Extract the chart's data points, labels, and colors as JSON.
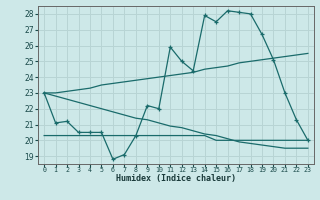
{
  "xlabel": "Humidex (Indice chaleur)",
  "background_color": "#cde8e8",
  "grid_color": "#b8d4d4",
  "line_color": "#1a6b6b",
  "xlim": [
    -0.5,
    23.5
  ],
  "ylim": [
    18.5,
    28.5
  ],
  "yticks": [
    19,
    20,
    21,
    22,
    23,
    24,
    25,
    26,
    27,
    28
  ],
  "xtick_labels": [
    "0",
    "1",
    "2",
    "3",
    "4",
    "5",
    "6",
    "7",
    "8",
    "9",
    "10",
    "11",
    "12",
    "13",
    "14",
    "15",
    "16",
    "17",
    "18",
    "19",
    "20",
    "21",
    "22",
    "23"
  ],
  "xtick_pos": [
    0,
    1,
    2,
    3,
    4,
    5,
    6,
    7,
    8,
    9,
    10,
    11,
    12,
    13,
    14,
    15,
    16,
    17,
    18,
    19,
    20,
    21,
    22,
    23
  ],
  "line1_x": [
    0,
    1,
    2,
    3,
    4,
    5,
    6,
    7,
    8,
    9,
    10,
    11,
    12,
    13,
    14,
    15,
    16,
    17,
    18,
    19,
    20,
    21,
    22,
    23
  ],
  "line1_y": [
    23.0,
    23.0,
    23.1,
    23.2,
    23.3,
    23.5,
    23.6,
    23.7,
    23.8,
    23.9,
    24.0,
    24.1,
    24.2,
    24.3,
    24.5,
    24.6,
    24.7,
    24.9,
    25.0,
    25.1,
    25.2,
    25.3,
    25.4,
    25.5
  ],
  "line2_x": [
    0,
    1,
    2,
    3,
    4,
    5,
    6,
    7,
    8,
    9,
    10,
    11,
    12,
    13,
    14,
    15,
    16,
    17,
    18,
    19,
    20,
    21,
    22,
    23
  ],
  "line2_y": [
    23.0,
    22.8,
    22.6,
    22.4,
    22.2,
    22.0,
    21.8,
    21.6,
    21.4,
    21.3,
    21.1,
    20.9,
    20.8,
    20.6,
    20.4,
    20.3,
    20.1,
    19.9,
    19.8,
    19.7,
    19.6,
    19.5,
    19.5,
    19.5
  ],
  "line3_x": [
    0,
    1,
    2,
    3,
    4,
    5,
    6,
    7,
    8,
    9,
    10,
    11,
    12,
    13,
    14,
    15,
    16,
    17,
    18,
    19,
    20,
    21,
    22,
    23
  ],
  "line3_y": [
    23.0,
    21.1,
    21.2,
    20.5,
    20.5,
    20.5,
    18.8,
    19.1,
    20.3,
    22.2,
    22.0,
    25.9,
    25.0,
    24.4,
    27.9,
    27.5,
    28.2,
    28.1,
    28.0,
    26.7,
    25.1,
    23.0,
    21.3,
    20.0
  ],
  "line4_x": [
    0,
    1,
    2,
    3,
    4,
    5,
    6,
    7,
    8,
    9,
    10,
    11,
    12,
    13,
    14,
    15,
    16,
    17,
    18,
    19,
    20,
    21,
    22,
    23
  ],
  "line4_y": [
    20.3,
    20.3,
    20.3,
    20.3,
    20.3,
    20.3,
    20.3,
    20.3,
    20.3,
    20.3,
    20.3,
    20.3,
    20.3,
    20.3,
    20.3,
    20.0,
    20.0,
    20.0,
    20.0,
    20.0,
    20.0,
    20.0,
    20.0,
    20.0
  ],
  "marker_indices3": [
    0,
    1,
    2,
    3,
    4,
    5,
    6,
    7,
    8,
    9,
    10,
    11,
    12,
    13,
    14,
    15,
    16,
    17,
    18,
    19,
    20,
    21,
    22,
    23
  ]
}
